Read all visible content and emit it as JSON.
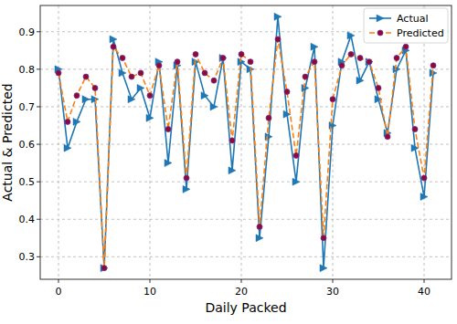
{
  "chart_data": {
    "type": "line",
    "x_label": "Daily Packed",
    "y_label": "Actual & Predicted",
    "x": [
      0,
      1,
      2,
      3,
      4,
      5,
      6,
      7,
      8,
      9,
      10,
      11,
      12,
      13,
      14,
      15,
      16,
      17,
      18,
      19,
      20,
      21,
      22,
      23,
      24,
      25,
      26,
      27,
      28,
      29,
      30,
      31,
      32,
      33,
      34,
      35,
      36,
      37,
      38,
      39,
      40,
      41
    ],
    "series": [
      {
        "name": "Actual",
        "color": "#1f77b4",
        "marker": "triangle-right",
        "line_style": "solid",
        "values": [
          0.8,
          0.59,
          0.66,
          0.72,
          0.72,
          0.27,
          0.88,
          0.79,
          0.72,
          0.75,
          0.67,
          0.82,
          0.55,
          0.81,
          0.48,
          0.82,
          0.73,
          0.7,
          0.83,
          0.53,
          0.82,
          0.8,
          0.35,
          0.62,
          0.94,
          0.68,
          0.5,
          0.75,
          0.86,
          0.27,
          0.65,
          0.82,
          0.89,
          0.77,
          0.82,
          0.72,
          0.63,
          0.8,
          0.85,
          0.59,
          0.46,
          0.79
        ]
      },
      {
        "name": "Predicted",
        "color": "#ff7f0e",
        "marker": "circle",
        "line_style": "dashed",
        "values": [
          0.79,
          0.66,
          0.73,
          0.78,
          0.75,
          0.27,
          0.86,
          0.83,
          0.78,
          0.79,
          0.73,
          0.81,
          0.64,
          0.82,
          0.51,
          0.84,
          0.79,
          0.77,
          0.83,
          0.61,
          0.84,
          0.82,
          0.38,
          0.67,
          0.88,
          0.74,
          0.57,
          0.78,
          0.82,
          0.35,
          0.72,
          0.81,
          0.84,
          0.83,
          0.82,
          0.75,
          0.62,
          0.83,
          0.86,
          0.64,
          0.51,
          0.81
        ]
      }
    ],
    "xlim": [
      -2,
      43
    ],
    "ylim": [
      0.24,
      0.97
    ],
    "xticks": [
      0,
      10,
      20,
      30,
      40
    ],
    "yticks": [
      0.3,
      0.4,
      0.5,
      0.6,
      0.7,
      0.8,
      0.9
    ],
    "grid": true,
    "legend": "upper right"
  }
}
